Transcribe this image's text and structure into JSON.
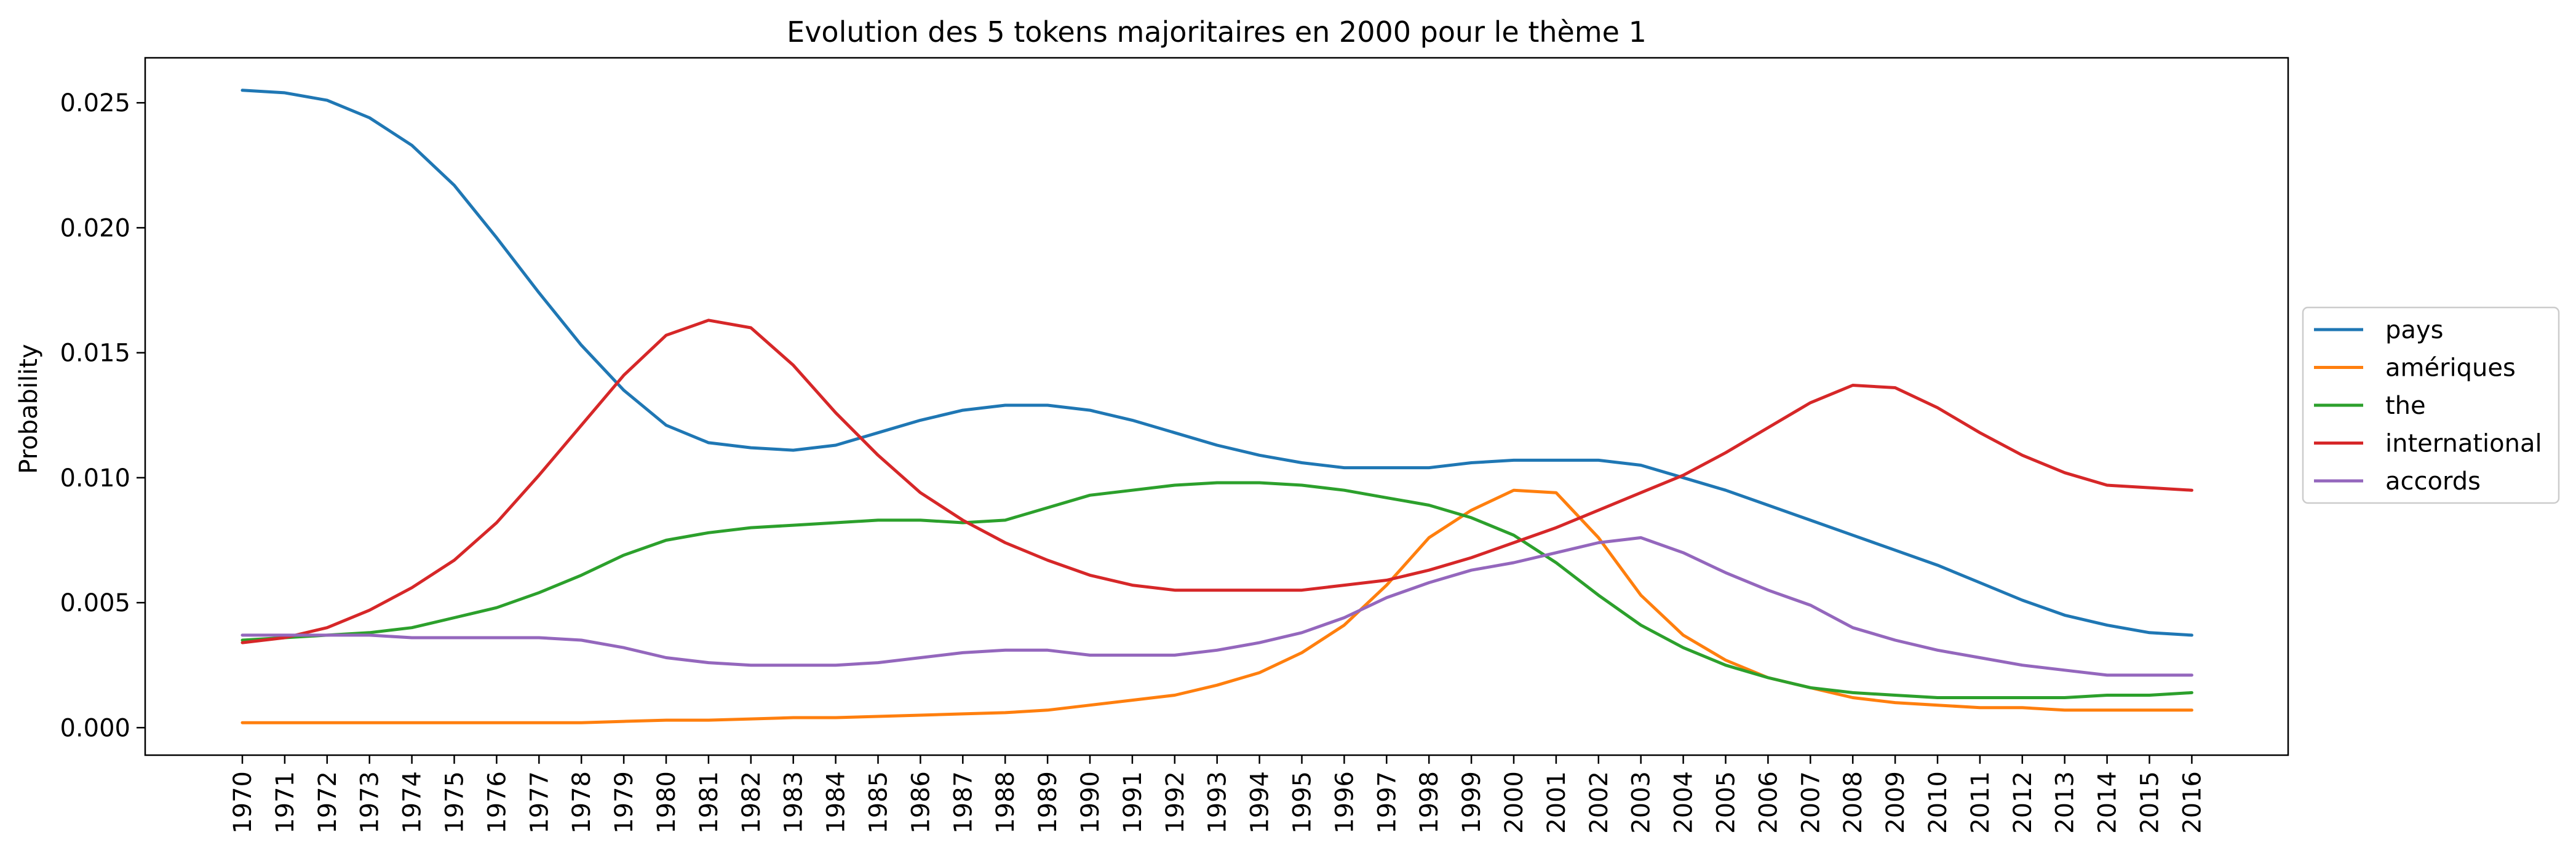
{
  "chart_data": {
    "type": "line",
    "title": "Evolution des 5 tokens majoritaires en 2000 pour le thème 1",
    "xlabel": "",
    "ylabel": "Probability",
    "ylim": [
      -0.0011,
      0.0268
    ],
    "yticks": [
      0.0,
      0.005,
      0.01,
      0.015,
      0.02,
      0.025
    ],
    "ytick_labels": [
      "0.000",
      "0.005",
      "0.010",
      "0.015",
      "0.020",
      "0.025"
    ],
    "x": [
      "1970",
      "1971",
      "1972",
      "1973",
      "1974",
      "1975",
      "1976",
      "1977",
      "1978",
      "1979",
      "1980",
      "1981",
      "1982",
      "1983",
      "1984",
      "1985",
      "1986",
      "1987",
      "1988",
      "1989",
      "1990",
      "1991",
      "1992",
      "1993",
      "1994",
      "1995",
      "1996",
      "1997",
      "1998",
      "1999",
      "2000",
      "2001",
      "2002",
      "2003",
      "2004",
      "2005",
      "2006",
      "2007",
      "2008",
      "2009",
      "2010",
      "2011",
      "2012",
      "2013",
      "2014",
      "2015",
      "2016"
    ],
    "grid": false,
    "legend_position": "center-right-outside",
    "series": [
      {
        "name": "pays",
        "color": "#1f77b4",
        "values": [
          0.0255,
          0.0254,
          0.0251,
          0.0244,
          0.0233,
          0.0217,
          0.0196,
          0.0174,
          0.0153,
          0.0135,
          0.0121,
          0.0114,
          0.0112,
          0.0111,
          0.0113,
          0.0118,
          0.0123,
          0.0127,
          0.0129,
          0.0129,
          0.0127,
          0.0123,
          0.0118,
          0.0113,
          0.0109,
          0.0106,
          0.0104,
          0.0104,
          0.0104,
          0.0106,
          0.0107,
          0.0107,
          0.0107,
          0.0105,
          0.01,
          0.0095,
          0.0089,
          0.0083,
          0.0077,
          0.0071,
          0.0065,
          0.0058,
          0.0051,
          0.0045,
          0.0041,
          0.0038,
          0.0037
        ]
      },
      {
        "name": "amériques",
        "color": "#ff7f0e",
        "values": [
          0.0002,
          0.0002,
          0.0002,
          0.0002,
          0.0002,
          0.0002,
          0.0002,
          0.0002,
          0.0002,
          0.00025,
          0.0003,
          0.0003,
          0.00035,
          0.0004,
          0.0004,
          0.00045,
          0.0005,
          0.00055,
          0.0006,
          0.0007,
          0.0009,
          0.0011,
          0.0013,
          0.0017,
          0.0022,
          0.003,
          0.0041,
          0.0057,
          0.0076,
          0.0087,
          0.0095,
          0.0094,
          0.0076,
          0.0053,
          0.0037,
          0.0027,
          0.002,
          0.0016,
          0.0012,
          0.001,
          0.0009,
          0.0008,
          0.0008,
          0.0007,
          0.0007,
          0.0007,
          0.0007
        ]
      },
      {
        "name": "the",
        "color": "#2ca02c",
        "values": [
          0.0035,
          0.0036,
          0.0037,
          0.0038,
          0.004,
          0.0044,
          0.0048,
          0.0054,
          0.0061,
          0.0069,
          0.0075,
          0.0078,
          0.008,
          0.0081,
          0.0082,
          0.0083,
          0.0083,
          0.0082,
          0.0083,
          0.0088,
          0.0093,
          0.0095,
          0.0097,
          0.0098,
          0.0098,
          0.0097,
          0.0095,
          0.0092,
          0.0089,
          0.0084,
          0.0077,
          0.0066,
          0.0053,
          0.0041,
          0.0032,
          0.0025,
          0.002,
          0.0016,
          0.0014,
          0.0013,
          0.0012,
          0.0012,
          0.0012,
          0.0012,
          0.0013,
          0.0013,
          0.0014
        ]
      },
      {
        "name": "international",
        "color": "#d62728",
        "values": [
          0.0034,
          0.0036,
          0.004,
          0.0047,
          0.0056,
          0.0067,
          0.0082,
          0.0101,
          0.0121,
          0.0141,
          0.0157,
          0.0163,
          0.016,
          0.0145,
          0.0126,
          0.0109,
          0.0094,
          0.0083,
          0.0074,
          0.0067,
          0.0061,
          0.0057,
          0.0055,
          0.0055,
          0.0055,
          0.0055,
          0.0057,
          0.0059,
          0.0063,
          0.0068,
          0.0074,
          0.008,
          0.0087,
          0.0094,
          0.0101,
          0.011,
          0.012,
          0.013,
          0.0137,
          0.0136,
          0.0128,
          0.0118,
          0.0109,
          0.0102,
          0.0097,
          0.0096,
          0.0095
        ]
      },
      {
        "name": "accords",
        "color": "#9467bd",
        "values": [
          0.0037,
          0.0037,
          0.0037,
          0.0037,
          0.0036,
          0.0036,
          0.0036,
          0.0036,
          0.0035,
          0.0032,
          0.0028,
          0.0026,
          0.0025,
          0.0025,
          0.0025,
          0.0026,
          0.0028,
          0.003,
          0.0031,
          0.0031,
          0.0029,
          0.0029,
          0.0029,
          0.0031,
          0.0034,
          0.0038,
          0.0044,
          0.0052,
          0.0058,
          0.0063,
          0.0066,
          0.007,
          0.0074,
          0.0076,
          0.007,
          0.0062,
          0.0055,
          0.0049,
          0.004,
          0.0035,
          0.0031,
          0.0028,
          0.0025,
          0.0023,
          0.0021,
          0.0021,
          0.0021
        ]
      }
    ]
  }
}
